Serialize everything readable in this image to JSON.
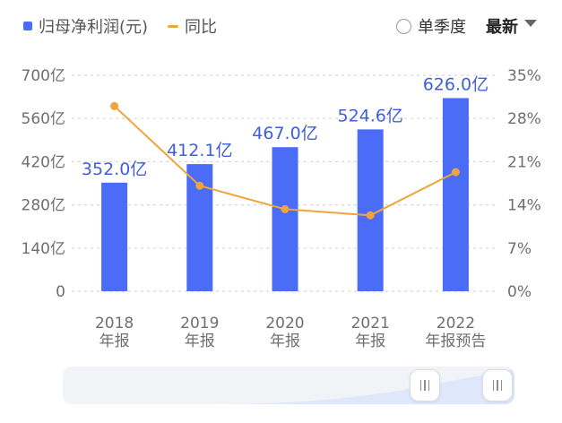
{
  "legend": {
    "bar_label": "归母净利润(元)",
    "line_label": "同比"
  },
  "controls": {
    "single_quarter_label": "单季度",
    "period_label": "最新"
  },
  "colors": {
    "bar": "#4a6cf7",
    "line": "#f0a43c",
    "grid": "#d7d7d7",
    "axis_text": "#6f6f6f",
    "bar_label": "#3f5fd8"
  },
  "chart_data": {
    "type": "bar",
    "categories": [
      [
        "2018",
        "年报"
      ],
      [
        "2019",
        "年报"
      ],
      [
        "2020",
        "年报"
      ],
      [
        "2021",
        "年报"
      ],
      [
        "2022",
        "年报预告"
      ]
    ],
    "series": [
      {
        "name": "归母净利润(元)",
        "type": "bar",
        "axis": "left",
        "values": [
          352.0,
          412.1,
          467.0,
          524.6,
          626.0
        ],
        "labels": [
          "352.0亿",
          "412.1亿",
          "467.0亿",
          "524.6亿",
          "626.0亿"
        ]
      },
      {
        "name": "同比",
        "type": "line",
        "axis": "right",
        "values": [
          30.0,
          17.1,
          13.3,
          12.3,
          19.3
        ]
      }
    ],
    "y_left": {
      "ticks": [
        0,
        140,
        280,
        420,
        560,
        700
      ],
      "tick_labels": [
        "0",
        "140亿",
        "280亿",
        "420亿",
        "560亿",
        "700亿"
      ],
      "ylim": [
        0,
        700
      ]
    },
    "y_right": {
      "ticks": [
        0,
        7,
        14,
        21,
        28,
        35
      ],
      "tick_labels": [
        "0%",
        "7%",
        "14%",
        "21%",
        "28%",
        "35%"
      ],
      "ylim": [
        0,
        35
      ]
    },
    "grid": true
  }
}
